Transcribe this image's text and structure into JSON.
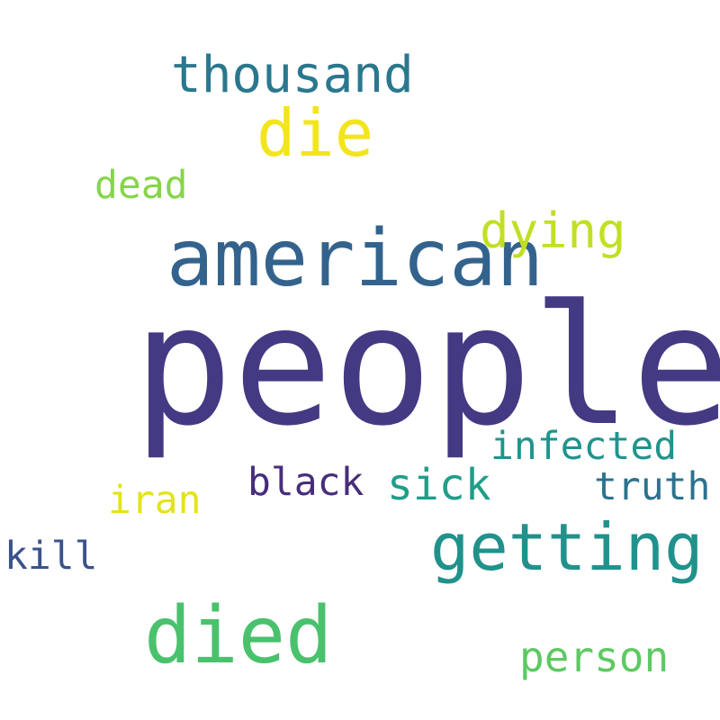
{
  "words": [
    {
      "text": "people",
      "color": "#443983"
    },
    {
      "text": "american",
      "color": "#33638d"
    },
    {
      "text": "died",
      "color": "#4ac16d"
    },
    {
      "text": "getting",
      "color": "#21918c"
    },
    {
      "text": "die",
      "color": "#f2e51b"
    },
    {
      "text": "thousand",
      "color": "#2a788e"
    },
    {
      "text": "dying",
      "color": "#c2df23"
    },
    {
      "text": "sick",
      "color": "#1f9e89"
    },
    {
      "text": "person",
      "color": "#5ec962"
    },
    {
      "text": "infected",
      "color": "#1f948c"
    },
    {
      "text": "truth",
      "color": "#2c728e"
    },
    {
      "text": "black",
      "color": "#472d7b"
    },
    {
      "text": "iran",
      "color": "#e2e418"
    },
    {
      "text": "dead",
      "color": "#86d549"
    },
    {
      "text": "kill",
      "color": "#3b528b"
    }
  ]
}
